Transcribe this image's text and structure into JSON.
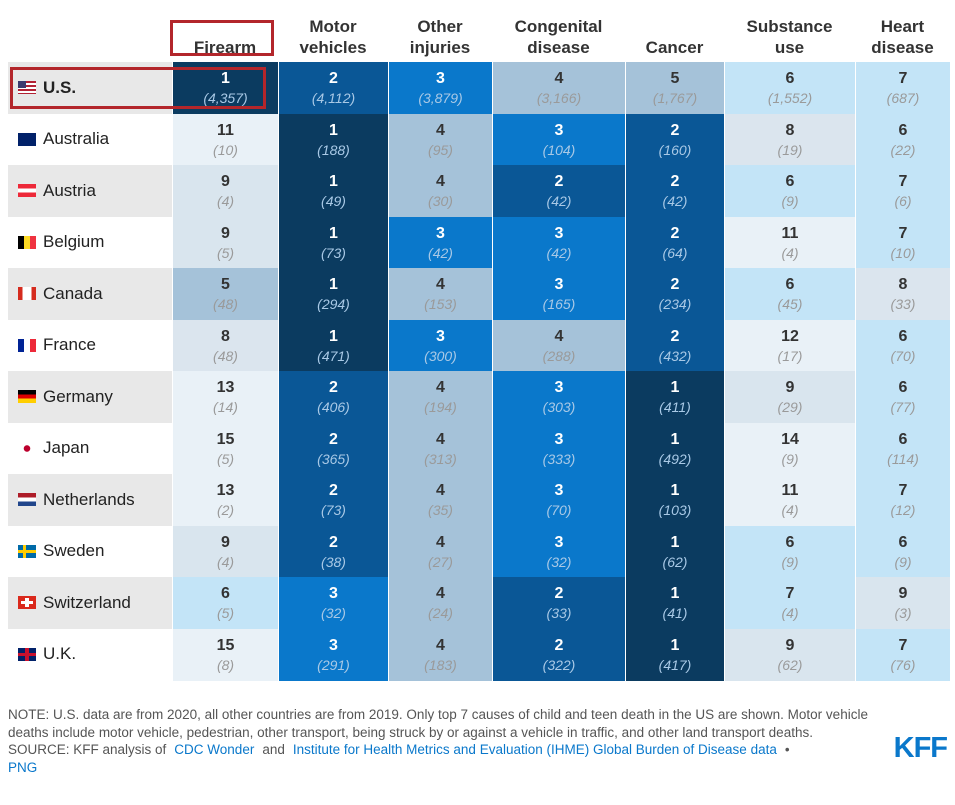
{
  "table": {
    "columns": [
      "Firearm",
      "Motor\nvehicles",
      "Other\ninjuries",
      "Congenital\ndisease",
      "Cancer",
      "Substance\nuse",
      "Heart\ndisease"
    ],
    "rank_colors": {
      "1": "#0b3b60",
      "2": "#0a5796",
      "3": "#0a78cb",
      "4": "#a5c2d9",
      "5": "#a5c2d9",
      "6": "#c3e4f7",
      "7": "#c3e4f7",
      "8": "#dbe5ee",
      "9": "#d9e5ee",
      "11": "#e9f1f7",
      "12": "#e9f1f7",
      "13": "#e9f1f7",
      "14": "#e9f1f7",
      "15": "#e9f1f7"
    },
    "rows": [
      {
        "country": "U.S.",
        "cells": [
          [
            1,
            "(4,357)"
          ],
          [
            2,
            "(4,112)"
          ],
          [
            3,
            "(3,879)"
          ],
          [
            4,
            "(3,166)"
          ],
          [
            5,
            "(1,767)"
          ],
          [
            6,
            "(1,552)"
          ],
          [
            7,
            "(687)"
          ]
        ]
      },
      {
        "country": "Australia",
        "cells": [
          [
            11,
            "(10)"
          ],
          [
            1,
            "(188)"
          ],
          [
            4,
            "(95)"
          ],
          [
            3,
            "(104)"
          ],
          [
            2,
            "(160)"
          ],
          [
            8,
            "(19)"
          ],
          [
            6,
            "(22)"
          ]
        ]
      },
      {
        "country": "Austria",
        "cells": [
          [
            9,
            "(4)"
          ],
          [
            1,
            "(49)"
          ],
          [
            4,
            "(30)"
          ],
          [
            2,
            "(42)"
          ],
          [
            2,
            "(42)"
          ],
          [
            6,
            "(9)"
          ],
          [
            7,
            "(6)"
          ]
        ]
      },
      {
        "country": "Belgium",
        "cells": [
          [
            9,
            "(5)"
          ],
          [
            1,
            "(73)"
          ],
          [
            3,
            "(42)"
          ],
          [
            3,
            "(42)"
          ],
          [
            2,
            "(64)"
          ],
          [
            11,
            "(4)"
          ],
          [
            7,
            "(10)"
          ]
        ]
      },
      {
        "country": "Canada",
        "cells": [
          [
            5,
            "(48)"
          ],
          [
            1,
            "(294)"
          ],
          [
            4,
            "(153)"
          ],
          [
            3,
            "(165)"
          ],
          [
            2,
            "(234)"
          ],
          [
            6,
            "(45)"
          ],
          [
            8,
            "(33)"
          ]
        ]
      },
      {
        "country": "France",
        "cells": [
          [
            8,
            "(48)"
          ],
          [
            1,
            "(471)"
          ],
          [
            3,
            "(300)"
          ],
          [
            4,
            "(288)"
          ],
          [
            2,
            "(432)"
          ],
          [
            12,
            "(17)"
          ],
          [
            6,
            "(70)"
          ]
        ]
      },
      {
        "country": "Germany",
        "cells": [
          [
            13,
            "(14)"
          ],
          [
            2,
            "(406)"
          ],
          [
            4,
            "(194)"
          ],
          [
            3,
            "(303)"
          ],
          [
            1,
            "(411)"
          ],
          [
            9,
            "(29)"
          ],
          [
            6,
            "(77)"
          ]
        ]
      },
      {
        "country": "Japan",
        "cells": [
          [
            15,
            "(5)"
          ],
          [
            2,
            "(365)"
          ],
          [
            4,
            "(313)"
          ],
          [
            3,
            "(333)"
          ],
          [
            1,
            "(492)"
          ],
          [
            14,
            "(9)"
          ],
          [
            6,
            "(114)"
          ]
        ]
      },
      {
        "country": "Netherlands",
        "cells": [
          [
            13,
            "(2)"
          ],
          [
            2,
            "(73)"
          ],
          [
            4,
            "(35)"
          ],
          [
            3,
            "(70)"
          ],
          [
            1,
            "(103)"
          ],
          [
            11,
            "(4)"
          ],
          [
            7,
            "(12)"
          ]
        ]
      },
      {
        "country": "Sweden",
        "cells": [
          [
            9,
            "(4)"
          ],
          [
            2,
            "(38)"
          ],
          [
            4,
            "(27)"
          ],
          [
            3,
            "(32)"
          ],
          [
            1,
            "(62)"
          ],
          [
            6,
            "(9)"
          ],
          [
            6,
            "(9)"
          ]
        ]
      },
      {
        "country": "Switzerland",
        "cells": [
          [
            6,
            "(5)"
          ],
          [
            3,
            "(32)"
          ],
          [
            4,
            "(24)"
          ],
          [
            2,
            "(33)"
          ],
          [
            1,
            "(41)"
          ],
          [
            7,
            "(4)"
          ],
          [
            9,
            "(3)"
          ]
        ]
      },
      {
        "country": "U.K.",
        "cells": [
          [
            15,
            "(8)"
          ],
          [
            3,
            "(291)"
          ],
          [
            4,
            "(183)"
          ],
          [
            2,
            "(322)"
          ],
          [
            1,
            "(417)"
          ],
          [
            9,
            "(62)"
          ],
          [
            7,
            "(76)"
          ]
        ]
      }
    ]
  },
  "notes": {
    "note": "NOTE: U.S. data are from 2020, all other countries are from 2019. Only top 7 causes of child and teen death in the US are shown. Motor vehicle deaths include motor vehicle, pedestrian, other transport, being struck by or against a vehicle in traffic, and other land transport deaths.",
    "source_prefix": "SOURCE: KFF analysis of",
    "link1": "CDC Wonder",
    "and": "and",
    "link2": "Institute for Health Metrics and Evaluation (IHME) Global Burden of Disease data",
    "bullet": "•",
    "png": "PNG"
  },
  "logo": "KFF"
}
